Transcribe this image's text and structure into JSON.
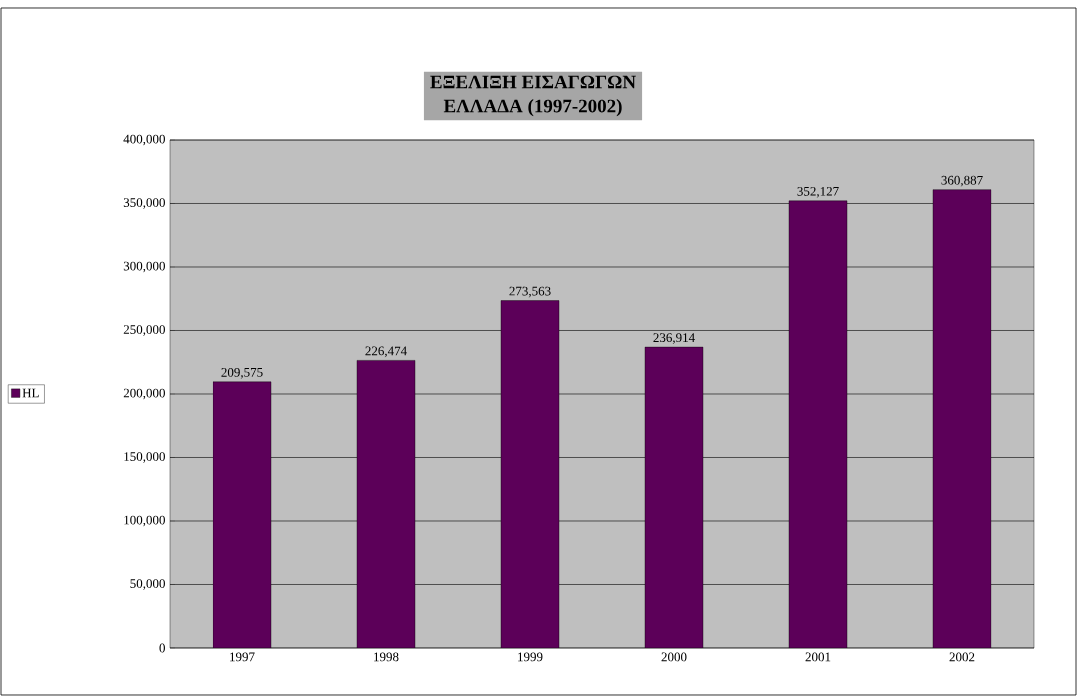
{
  "chart_data": {
    "type": "bar",
    "title": "ΕΞΕΛΙΞΗ ΕΙΣΑΓΩΓΩΝ",
    "subtitle": "ΕΛΛΑΔΑ (1997-2002)",
    "categories": [
      "1997",
      "1998",
      "1999",
      "2000",
      "2001",
      "2002"
    ],
    "series": [
      {
        "name": "HL",
        "color": "#5c0059",
        "values": [
          209575,
          226474,
          273563,
          236914,
          352127,
          360887
        ],
        "value_labels": [
          "209,575",
          "226,474",
          "273,563",
          "236,914",
          "352,127",
          "360,887"
        ]
      }
    ],
    "ylim": [
      0,
      400000
    ],
    "yticks": [
      {
        "value": 0,
        "label": "0"
      },
      {
        "value": 50000,
        "label": "50,000"
      },
      {
        "value": 100000,
        "label": "100,000"
      },
      {
        "value": 150000,
        "label": "150,000"
      },
      {
        "value": 200000,
        "label": "200,000"
      },
      {
        "value": 250000,
        "label": "250,000"
      },
      {
        "value": 300000,
        "label": "300,000"
      },
      {
        "value": 350000,
        "label": "350,000"
      },
      {
        "value": 400000,
        "label": "400,000"
      }
    ],
    "grid": "y",
    "legend": "left"
  }
}
